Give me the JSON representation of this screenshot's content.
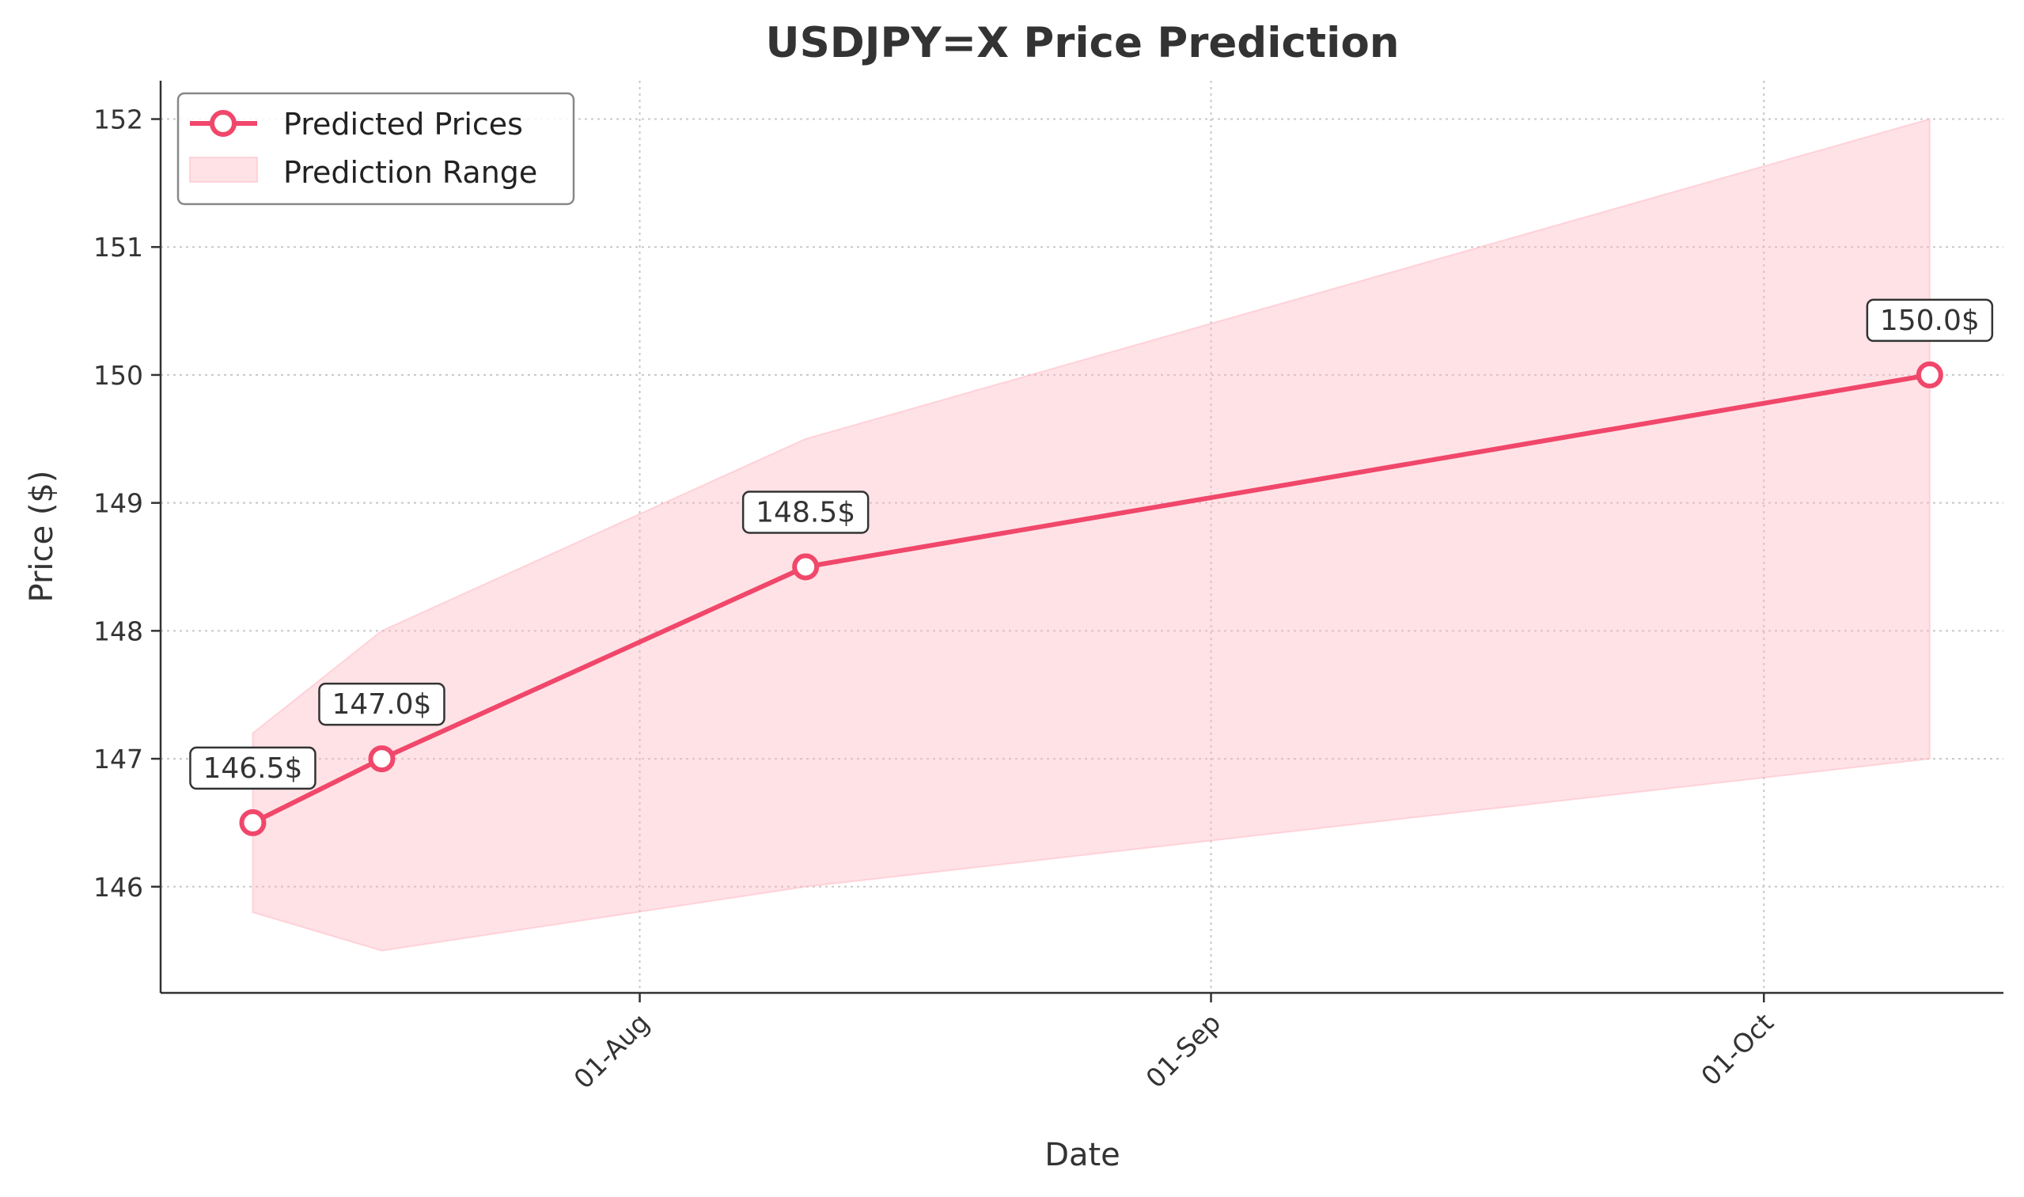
{
  "chart_data": {
    "type": "line",
    "title": "USDJPY=X Price Prediction",
    "xlabel": "Date",
    "ylabel": "Price ($)",
    "x_ticks": [
      {
        "date": "2024-08-01",
        "label": "01-Aug"
      },
      {
        "date": "2024-09-01",
        "label": "01-Sep"
      },
      {
        "date": "2024-10-01",
        "label": "01-Oct"
      }
    ],
    "y_ticks": [
      146,
      147,
      148,
      149,
      150,
      151,
      152
    ],
    "xlim": [
      "2024-07-06",
      "2024-10-14"
    ],
    "ylim": [
      145.17,
      152.3
    ],
    "grid": true,
    "legend_position": "top-left",
    "series": [
      {
        "name": "Predicted Prices",
        "kind": "line",
        "color": "#f0476a",
        "x": [
          "2024-07-11",
          "2024-07-18",
          "2024-08-10",
          "2024-10-10"
        ],
        "values": [
          146.5,
          147.0,
          148.5,
          150.0
        ],
        "labels": [
          "146.5$",
          "147.0$",
          "148.5$",
          "150.0$"
        ]
      },
      {
        "name": "Prediction Range",
        "kind": "band",
        "color": "#ffb6c1",
        "x": [
          "2024-07-11",
          "2024-07-18",
          "2024-08-10",
          "2024-10-10"
        ],
        "lower": [
          145.8,
          145.5,
          146.0,
          147.0
        ],
        "upper": [
          147.2,
          148.0,
          149.5,
          152.0
        ]
      }
    ]
  }
}
